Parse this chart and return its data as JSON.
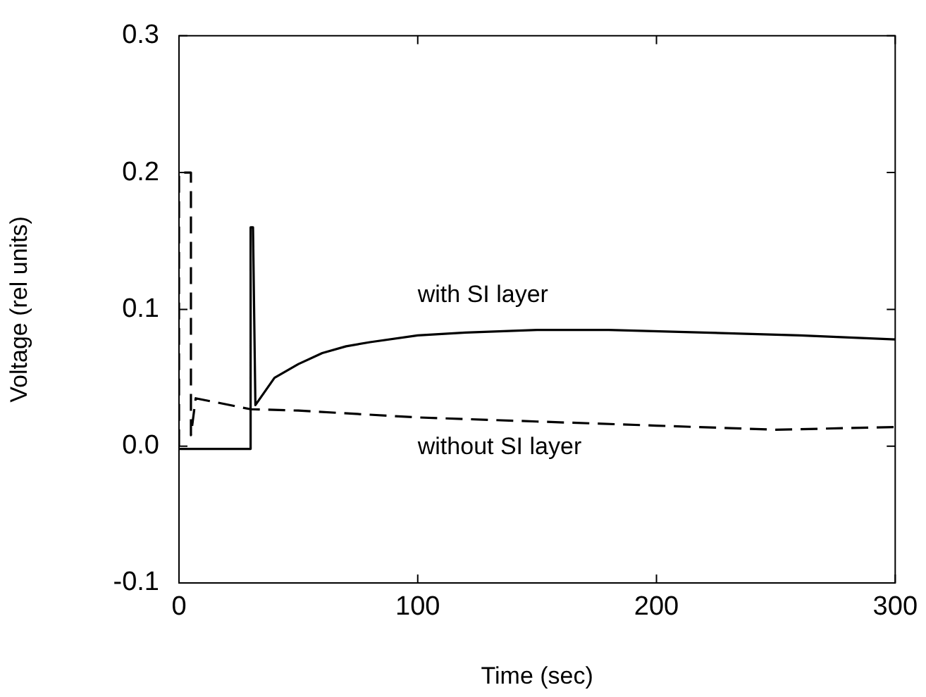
{
  "chart_data": {
    "type": "line",
    "xlabel": "Time (sec)",
    "ylabel": "Voltage (rel units)",
    "xlim": [
      0,
      300
    ],
    "xticks": [
      0,
      100,
      200,
      300
    ],
    "ylim": [
      -0.1,
      0.3
    ],
    "yticks": [
      {
        "value": -0.1,
        "label": "-0.1"
      },
      {
        "value": 0,
        "label": "0.0"
      },
      {
        "value": 0.1,
        "label": "0.1"
      },
      {
        "value": 0.2,
        "label": "0.2"
      },
      {
        "value": 0.3,
        "label": "0.3"
      }
    ],
    "grid": false,
    "legend": false,
    "marker": "none",
    "series": [
      {
        "name": "with SI layer",
        "color": "#000000",
        "line_style": "solid",
        "x": [
          0,
          30,
          30,
          31,
          32,
          40,
          50,
          60,
          70,
          80,
          100,
          120,
          150,
          180,
          220,
          260,
          300
        ],
        "values": [
          -0.002,
          -0.002,
          0.16,
          0.16,
          0.03,
          0.05,
          0.06,
          0.068,
          0.073,
          0.076,
          0.081,
          0.083,
          0.085,
          0.085,
          0.083,
          0.081,
          0.078
        ]
      },
      {
        "name": "without SI layer",
        "color": "#000000",
        "line_style": "dashed",
        "x": [
          0,
          0,
          5,
          5,
          7,
          30,
          50,
          100,
          150,
          200,
          250,
          300
        ],
        "values": [
          0.0,
          0.2,
          0.2,
          0.008,
          0.035,
          0.027,
          0.026,
          0.021,
          0.018,
          0.015,
          0.012,
          0.014
        ]
      }
    ]
  }
}
